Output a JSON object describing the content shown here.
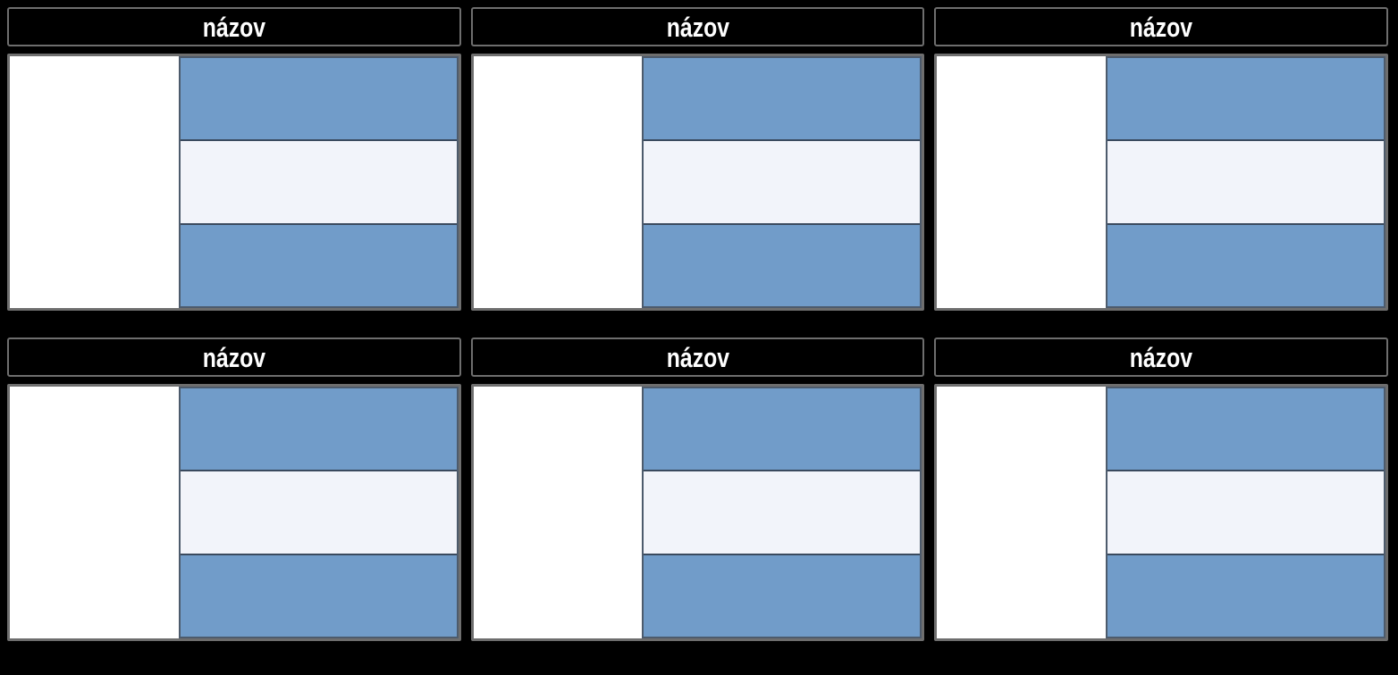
{
  "page": {
    "background": "#000000",
    "grid": {
      "columns": 3,
      "rows": 2
    }
  },
  "board": {
    "cards": [
      {
        "title": "názov"
      },
      {
        "title": "názov"
      },
      {
        "title": "názov"
      },
      {
        "title": "názov"
      },
      {
        "title": "názov"
      },
      {
        "title": "názov"
      }
    ]
  },
  "flag": {
    "description": "horizontal triband, blue-white-blue",
    "stripe_colors": [
      "#719CC9",
      "#F2F4FA",
      "#719CC9"
    ]
  },
  "colors": {
    "background": "#000000",
    "header_background": "#000000",
    "header_text": "#FFFFFF",
    "card_border": "#6E6E6E",
    "cell_background": "#FFFFFF",
    "flag_blue": "#719CC9",
    "flag_white": "#F2F4FA",
    "flag_outline": "#4D5B6C",
    "stripe_divider": "#3A4A5E"
  }
}
